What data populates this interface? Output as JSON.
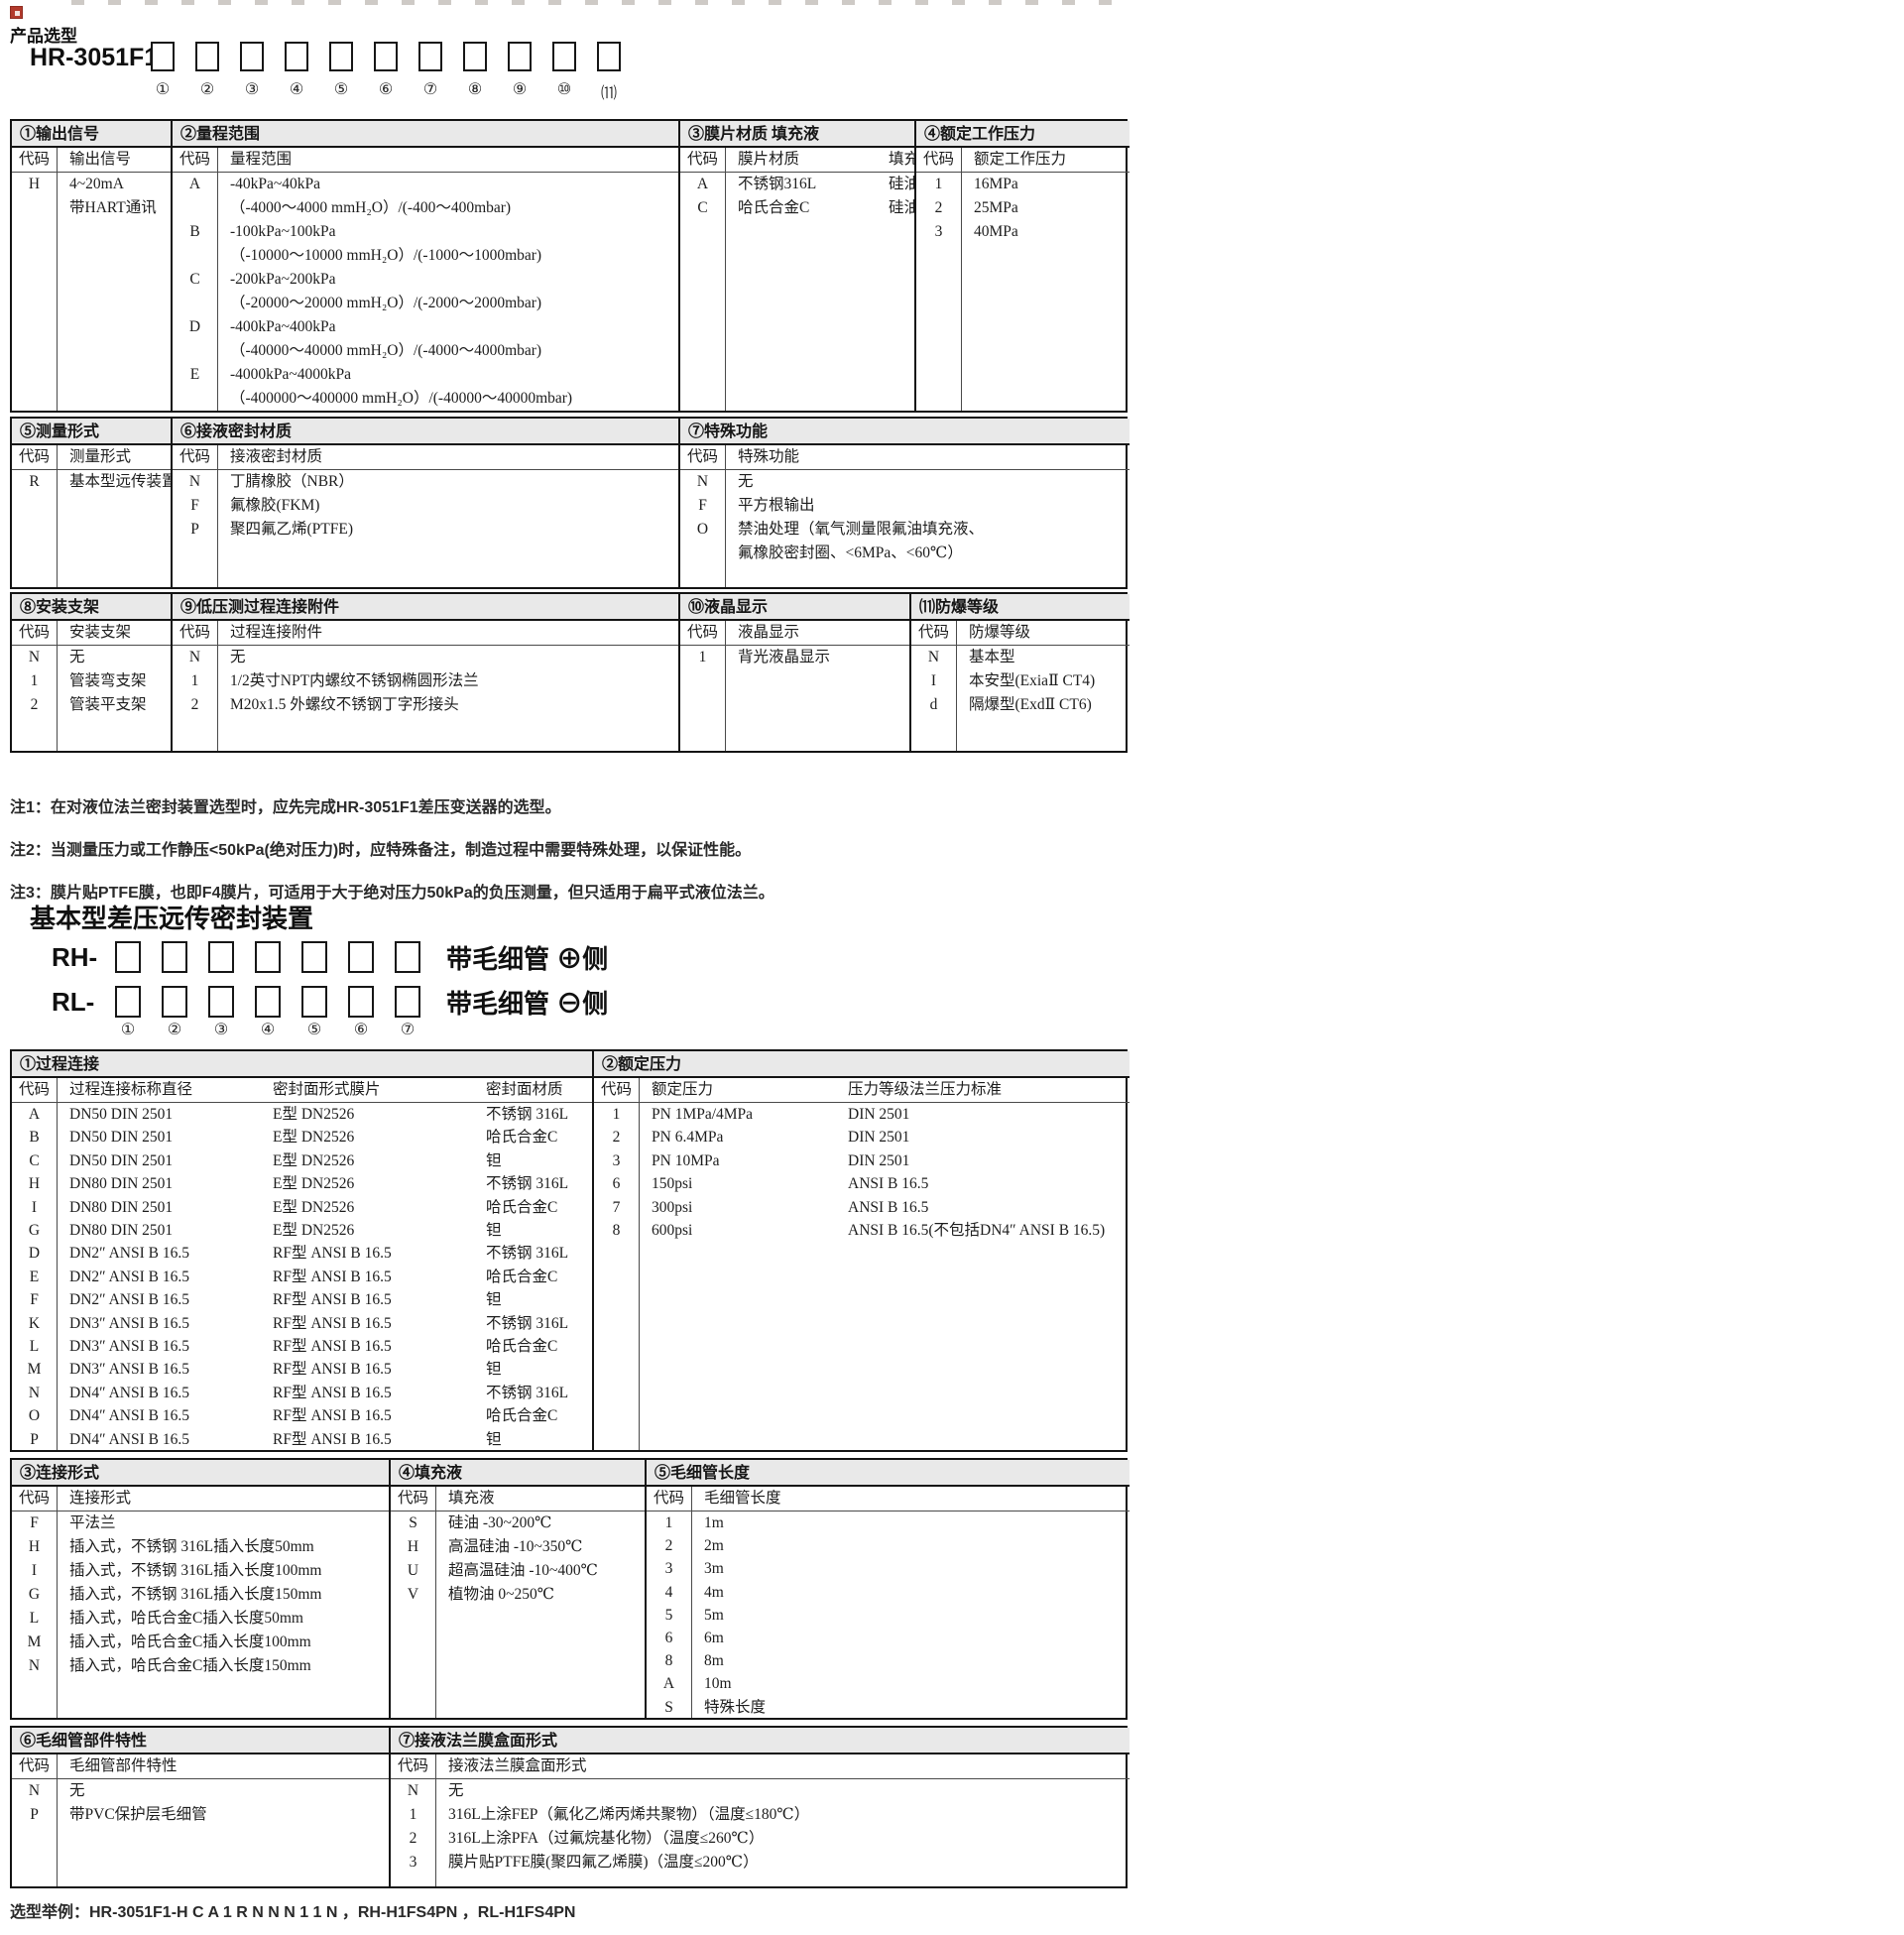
{
  "header": {
    "title": "产品选型",
    "model": {
      "prefix": "HR-3051F1-",
      "box_count": 11,
      "position_labels": [
        "①",
        "②",
        "③",
        "④",
        "⑤",
        "⑥",
        "⑦",
        "⑧",
        "⑨",
        "⑩",
        "⑾"
      ]
    }
  },
  "bands": [
    {
      "sections": [
        {
          "title": "①输出信号",
          "code_header": "代码",
          "desc_headers": [
            "输出信号"
          ],
          "rows": [
            {
              "code": "H",
              "lines": [
                "4~20mA",
                "带HART通讯"
              ]
            }
          ]
        },
        {
          "title": "②量程范围",
          "code_header": "代码",
          "desc_headers": [
            "量程范围"
          ],
          "rows": [
            {
              "code": "A",
              "lines": [
                "-40kPa~40kPa",
                "（-4000～4000 mmH₂O）/(-400～400mbar)"
              ]
            },
            {
              "code": "B",
              "lines": [
                "-100kPa~100kPa",
                "（-10000～10000 mmH₂O）/(-1000～1000mbar)"
              ]
            },
            {
              "code": "C",
              "lines": [
                "-200kPa~200kPa",
                "（-20000～20000 mmH₂O）/(-2000～2000mbar)"
              ]
            },
            {
              "code": "D",
              "lines": [
                "-400kPa~400kPa",
                "（-40000～40000 mmH₂O）/(-4000～4000mbar)"
              ]
            },
            {
              "code": "E",
              "lines": [
                "-4000kPa~4000kPa",
                "（-400000～400000 mmH₂O）/(-40000～40000mbar)"
              ]
            }
          ]
        },
        {
          "title": "③膜片材质  填充液",
          "code_header": "代码",
          "desc_headers": [
            "膜片材质",
            "填充液"
          ],
          "rows": [
            {
              "code": "A",
              "cols": [
                "不锈钢316L",
                "硅油"
              ]
            },
            {
              "code": "C",
              "cols": [
                "哈氏合金C",
                "硅油"
              ]
            }
          ]
        },
        {
          "title": "④额定工作压力",
          "code_header": "代码",
          "desc_headers": [
            "额定工作压力"
          ],
          "rows": [
            {
              "code": "1",
              "lines": [
                "16MPa"
              ]
            },
            {
              "code": "2",
              "lines": [
                "25MPa"
              ]
            },
            {
              "code": "3",
              "lines": [
                "40MPa"
              ]
            }
          ]
        }
      ]
    },
    {
      "sections": [
        {
          "title": "⑤测量形式",
          "code_header": "代码",
          "desc_headers": [
            "测量形式"
          ],
          "rows": [
            {
              "code": "R",
              "lines": [
                "基本型远传装置"
              ]
            }
          ]
        },
        {
          "title": "⑥接液密封材质",
          "code_header": "代码",
          "desc_headers": [
            "接液密封材质"
          ],
          "rows": [
            {
              "code": "N",
              "lines": [
                "丁腈橡胶（NBR）"
              ]
            },
            {
              "code": "F",
              "lines": [
                "氟橡胶(FKM)"
              ]
            },
            {
              "code": "P",
              "lines": [
                "聚四氟乙烯(PTFE)"
              ]
            }
          ]
        },
        {
          "title": "⑦特殊功能",
          "code_header": "代码",
          "desc_headers": [
            "特殊功能"
          ],
          "rows": [
            {
              "code": "N",
              "lines": [
                "无"
              ]
            },
            {
              "code": "F",
              "lines": [
                "平方根输出"
              ]
            },
            {
              "code": "O",
              "lines": [
                "禁油处理（氧气测量限氟油填充液、",
                "氟橡胶密封圈、<6MPa、<60℃）"
              ]
            }
          ]
        }
      ]
    },
    {
      "sections": [
        {
          "title": "⑧安装支架",
          "code_header": "代码",
          "desc_headers": [
            "安装支架"
          ],
          "rows": [
            {
              "code": "N",
              "lines": [
                "无"
              ]
            },
            {
              "code": "1",
              "lines": [
                "管装弯支架"
              ]
            },
            {
              "code": "2",
              "lines": [
                "管装平支架"
              ]
            }
          ]
        },
        {
          "title": "⑨低压测过程连接附件",
          "code_header": "代码",
          "desc_headers": [
            "过程连接附件"
          ],
          "rows": [
            {
              "code": "N",
              "lines": [
                "无"
              ]
            },
            {
              "code": "1",
              "lines": [
                "1/2英寸NPT内螺纹不锈钢椭圆形法兰"
              ]
            },
            {
              "code": "2",
              "lines": [
                "M20x1.5 外螺纹不锈钢丁字形接头"
              ]
            }
          ]
        },
        {
          "title": "⑩液晶显示",
          "code_header": "代码",
          "desc_headers": [
            "液晶显示"
          ],
          "rows": [
            {
              "code": "1",
              "lines": [
                "背光液晶显示"
              ]
            }
          ]
        },
        {
          "title": "⑾防爆等级",
          "code_header": "代码",
          "desc_headers": [
            "防爆等级"
          ],
          "rows": [
            {
              "code": "N",
              "lines": [
                "基本型"
              ]
            },
            {
              "code": "I",
              "lines": [
                "本安型(ExiaⅡ CT4)"
              ]
            },
            {
              "code": "d",
              "lines": [
                "隔爆型(ExdⅡ CT6)"
              ]
            }
          ]
        }
      ]
    },
    {
      "sections": [
        {
          "title": "①过程连接",
          "code_header": "代码",
          "desc_headers": [
            "过程连接标称直径",
            "密封面形式膜片",
            "密封面材质"
          ],
          "rows": [
            {
              "code": "A",
              "cols": [
                "DN50  DIN 2501",
                "E型  DN2526",
                "不锈钢 316L"
              ]
            },
            {
              "code": "B",
              "cols": [
                "DN50  DIN 2501",
                "E型  DN2526",
                "哈氏合金C"
              ]
            },
            {
              "code": "C",
              "cols": [
                "DN50  DIN 2501",
                "E型  DN2526",
                "钽"
              ]
            },
            {
              "code": "H",
              "cols": [
                "DN80  DIN 2501",
                "E型  DN2526",
                "不锈钢 316L"
              ]
            },
            {
              "code": "I",
              "cols": [
                "DN80  DIN 2501",
                "E型  DN2526",
                "哈氏合金C"
              ]
            },
            {
              "code": "G",
              "cols": [
                "DN80  DIN 2501",
                "E型  DN2526",
                "钽"
              ]
            },
            {
              "code": "D",
              "cols": [
                "DN2″ ANSI B 16.5",
                "RF型  ANSI B 16.5",
                "不锈钢 316L"
              ]
            },
            {
              "code": "E",
              "cols": [
                "DN2″ ANSI B 16.5",
                "RF型  ANSI B 16.5",
                "哈氏合金C"
              ]
            },
            {
              "code": "F",
              "cols": [
                "DN2″ ANSI B 16.5",
                "RF型  ANSI B 16.5",
                "钽"
              ]
            },
            {
              "code": "K",
              "cols": [
                "DN3″ ANSI B 16.5",
                "RF型  ANSI B 16.5",
                "不锈钢 316L"
              ]
            },
            {
              "code": "L",
              "cols": [
                "DN3″ ANSI B 16.5",
                "RF型  ANSI B 16.5",
                "哈氏合金C"
              ]
            },
            {
              "code": "M",
              "cols": [
                "DN3″ ANSI B 16.5",
                "RF型  ANSI B 16.5",
                "钽"
              ]
            },
            {
              "code": "N",
              "cols": [
                "DN4″ ANSI B 16.5",
                "RF型  ANSI B 16.5",
                "不锈钢 316L"
              ]
            },
            {
              "code": "O",
              "cols": [
                "DN4″ ANSI B 16.5",
                "RF型  ANSI B 16.5",
                "哈氏合金C"
              ]
            },
            {
              "code": "P",
              "cols": [
                "DN4″ ANSI B 16.5",
                "RF型  ANSI B 16.5",
                "钽"
              ]
            }
          ]
        },
        {
          "title": "②额定压力",
          "code_header": "代码",
          "desc_headers": [
            "额定压力",
            "压力等级法兰压力标准"
          ],
          "rows": [
            {
              "code": "1",
              "cols": [
                "PN 1MPa/4MPa",
                "DIN 2501"
              ]
            },
            {
              "code": "2",
              "cols": [
                "PN 6.4MPa",
                "DIN 2501"
              ]
            },
            {
              "code": "3",
              "cols": [
                "PN 10MPa",
                "DIN 2501"
              ]
            },
            {
              "code": "6",
              "cols": [
                "150psi",
                "ANSI B 16.5"
              ]
            },
            {
              "code": "7",
              "cols": [
                "300psi",
                "ANSI B 16.5"
              ]
            },
            {
              "code": "8",
              "cols": [
                "600psi",
                "ANSI B 16.5(不包括DN4″ ANSI B 16.5)"
              ]
            }
          ]
        }
      ]
    },
    {
      "sections": [
        {
          "title": "③连接形式",
          "code_header": "代码",
          "desc_headers": [
            "连接形式"
          ],
          "rows": [
            {
              "code": "F",
              "lines": [
                "平法兰"
              ]
            },
            {
              "code": "H",
              "lines": [
                "插入式，不锈钢 316L插入长度50mm"
              ]
            },
            {
              "code": "I",
              "lines": [
                "插入式，不锈钢 316L插入长度100mm"
              ]
            },
            {
              "code": "G",
              "lines": [
                "插入式，不锈钢 316L插入长度150mm"
              ]
            },
            {
              "code": "L",
              "lines": [
                "插入式，哈氏合金C插入长度50mm"
              ]
            },
            {
              "code": "M",
              "lines": [
                "插入式，哈氏合金C插入长度100mm"
              ]
            },
            {
              "code": "N",
              "lines": [
                "插入式，哈氏合金C插入长度150mm"
              ]
            }
          ]
        },
        {
          "title": "④填充液",
          "code_header": "代码",
          "desc_headers": [
            "填充液"
          ],
          "rows": [
            {
              "code": "S",
              "lines": [
                "硅油 -30~200℃"
              ]
            },
            {
              "code": "H",
              "lines": [
                "高温硅油 -10~350℃"
              ]
            },
            {
              "code": "U",
              "lines": [
                "超高温硅油 -10~400℃"
              ]
            },
            {
              "code": "V",
              "lines": [
                "植物油 0~250℃"
              ]
            }
          ]
        },
        {
          "title": "⑤毛细管长度",
          "code_header": "代码",
          "desc_headers": [
            "毛细管长度"
          ],
          "rows": [
            {
              "code": "1",
              "lines": [
                "1m"
              ]
            },
            {
              "code": "2",
              "lines": [
                "2m"
              ]
            },
            {
              "code": "3",
              "lines": [
                "3m"
              ]
            },
            {
              "code": "4",
              "lines": [
                "4m"
              ]
            },
            {
              "code": "5",
              "lines": [
                "5m"
              ]
            },
            {
              "code": "6",
              "lines": [
                "6m"
              ]
            },
            {
              "code": "8",
              "lines": [
                "8m"
              ]
            },
            {
              "code": "A",
              "lines": [
                "10m"
              ]
            },
            {
              "code": "S",
              "lines": [
                "特殊长度"
              ]
            }
          ]
        }
      ]
    },
    {
      "sections": [
        {
          "title": "⑥毛细管部件特性",
          "code_header": "代码",
          "desc_headers": [
            "毛细管部件特性"
          ],
          "rows": [
            {
              "code": "N",
              "lines": [
                "无"
              ]
            },
            {
              "code": "P",
              "lines": [
                "带PVC保护层毛细管"
              ]
            }
          ]
        },
        {
          "title": "⑦接液法兰膜盒面形式",
          "code_header": "代码",
          "desc_headers": [
            "接液法兰膜盒面形式"
          ],
          "rows": [
            {
              "code": "N",
              "lines": [
                "无"
              ]
            },
            {
              "code": "1",
              "lines": [
                "316L上涂FEP（氟化乙烯丙烯共聚物）（温度≤180℃）"
              ]
            },
            {
              "code": "2",
              "lines": [
                "316L上涂PFA（过氟烷基化物）（温度≤260℃）"
              ]
            },
            {
              "code": "3",
              "lines": [
                "膜片贴PTFE膜(聚四氟乙烯膜)（温度≤200℃）"
              ]
            }
          ]
        }
      ]
    }
  ],
  "notes": [
    "注1：在对液位法兰密封装置选型时，应先完成HR-3051F1差压变送器的选型。",
    "注2：当测量压力或工作静压<50kPa(绝对压力)时，应特殊备注，制造过程中需要特殊处理，以保证性能。",
    "注3：膜片贴PTFE膜，也即F4膜片，可适用于大于绝对压力50kPa的负压测量，但只适用于扁平式液位法兰。"
  ],
  "seal_device": {
    "title": "基本型差压远传密封装置",
    "rows": [
      {
        "prefix": "RH-",
        "box_count": 7,
        "suffix": "带毛细管 ⊕侧"
      },
      {
        "prefix": "RL-",
        "box_count": 7,
        "suffix": "带毛细管 ⊖侧"
      }
    ],
    "position_labels": [
      "①",
      "②",
      "③",
      "④",
      "⑤",
      "⑥",
      "⑦"
    ]
  },
  "footer_example": "选型举例：HR-3051F1-H C A 1 R N N N 1 1 N ，RH-H1FS4PN ，RL-H1FS4PN"
}
